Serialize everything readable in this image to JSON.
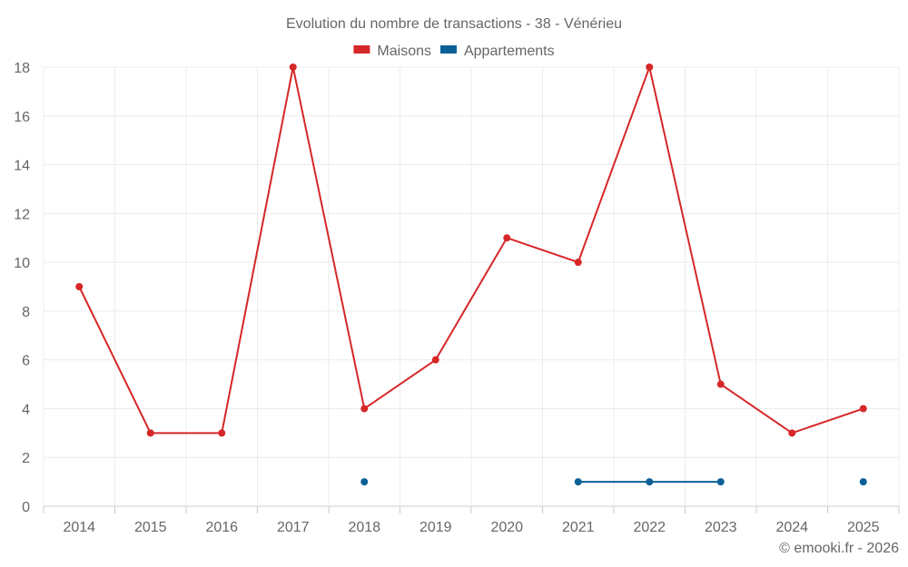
{
  "chart_data": {
    "type": "line",
    "title": "Evolution du nombre de transactions - 38 - Vénérieu",
    "xlabel": "",
    "ylabel": "",
    "categories": [
      "2014",
      "2015",
      "2016",
      "2017",
      "2018",
      "2019",
      "2020",
      "2021",
      "2022",
      "2023",
      "2024",
      "2025"
    ],
    "ylim": [
      0,
      18
    ],
    "yticks": [
      0,
      2,
      4,
      6,
      8,
      10,
      12,
      14,
      16,
      18
    ],
    "grid": true,
    "legend_position": "top-center",
    "series": [
      {
        "name": "Maisons",
        "color": "#d62728",
        "values": [
          9,
          3,
          3,
          18,
          4,
          6,
          11,
          10,
          18,
          5,
          3,
          4
        ]
      },
      {
        "name": "Appartements",
        "color": "#0b6196",
        "values": [
          null,
          null,
          null,
          null,
          1,
          null,
          null,
          1,
          1,
          1,
          null,
          1
        ]
      }
    ],
    "credit": "© emooki.fr - 2026"
  }
}
